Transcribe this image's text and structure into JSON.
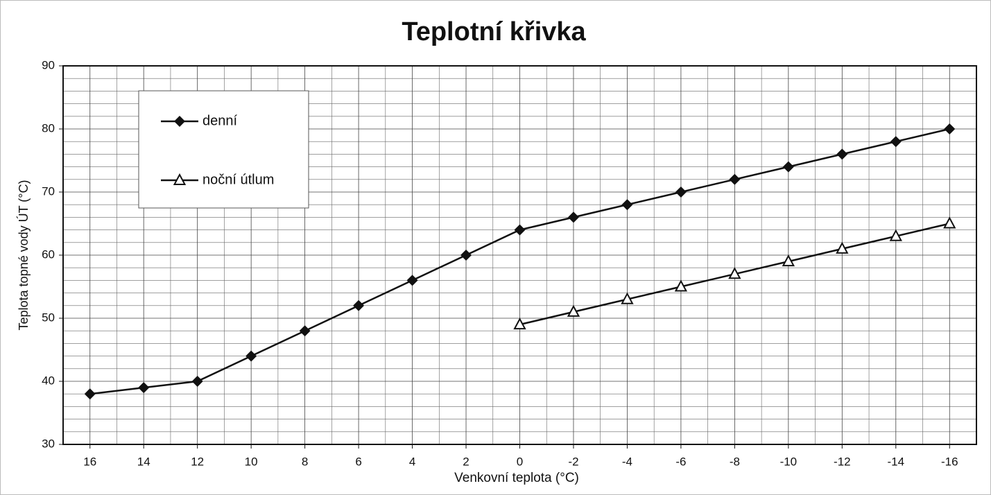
{
  "chart_data": {
    "type": "line",
    "title": "Teplotní křivka",
    "x_label": "Venkovní teplota (°C)",
    "y_label": "Teplota topné vody ÚT (°C)",
    "categories": [
      "16",
      "14",
      "12",
      "10",
      "8",
      "6",
      "4",
      "2",
      "0",
      "-2",
      "-4",
      "-6",
      "-8",
      "-10",
      "-12",
      "-14",
      "-16"
    ],
    "series": [
      {
        "name": "denní",
        "color": "#111111",
        "marker": "diamond",
        "values": [
          38,
          39,
          40,
          44,
          48,
          52,
          56,
          60,
          64,
          66,
          68,
          70,
          72,
          74,
          76,
          78,
          80
        ]
      },
      {
        "name": "noční útlum",
        "color": "#111111",
        "marker": "triangle",
        "values": [
          null,
          null,
          null,
          null,
          null,
          null,
          null,
          null,
          49,
          51,
          53,
          55,
          57,
          59,
          61,
          63,
          65
        ]
      }
    ],
    "ylim": [
      30,
      90
    ],
    "yticks": [
      30,
      40,
      50,
      60,
      70,
      80,
      90
    ],
    "grid": true,
    "legend": "upper left"
  }
}
